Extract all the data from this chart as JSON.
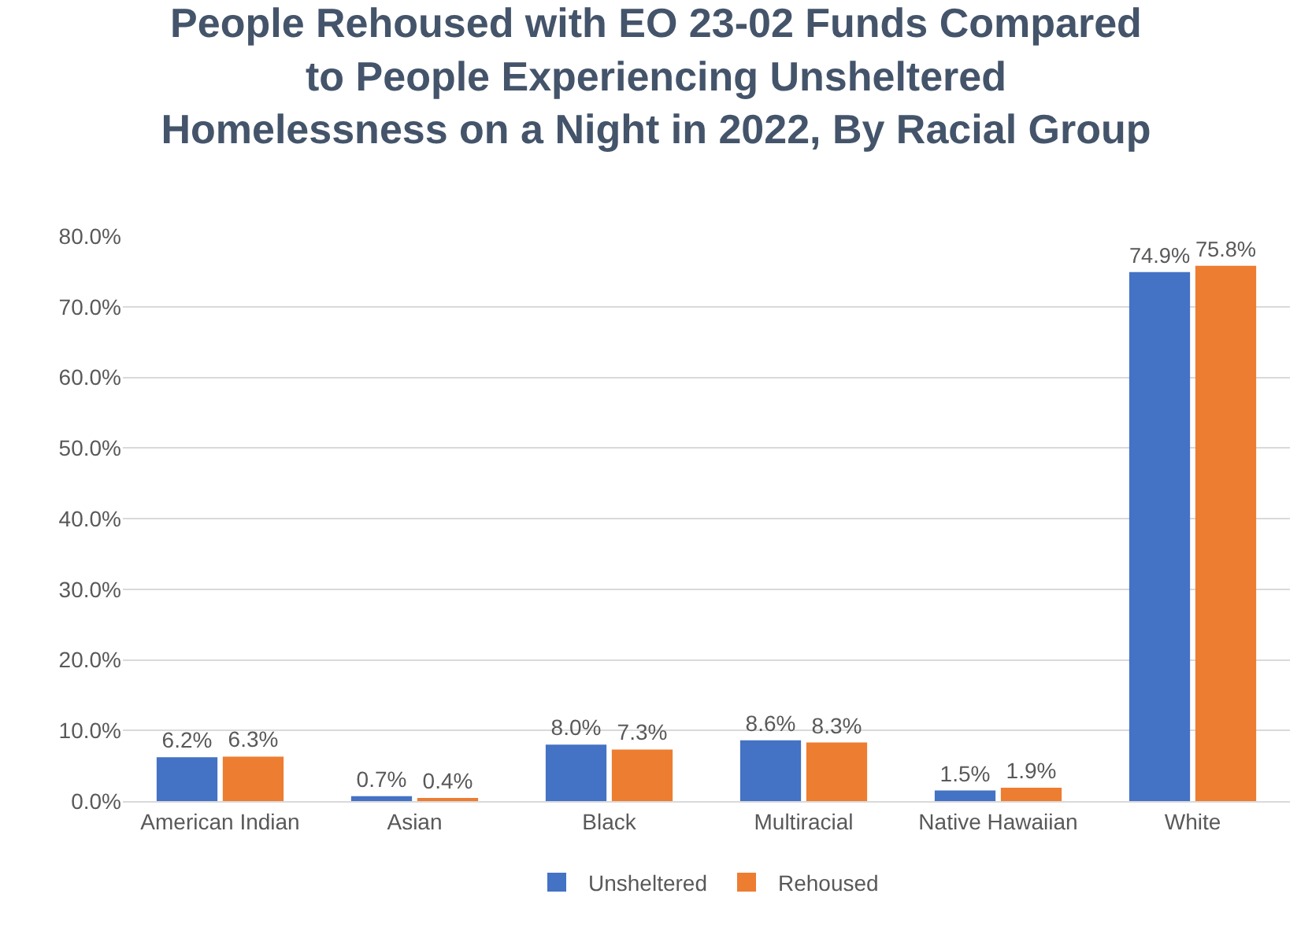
{
  "chart_data": {
    "type": "bar",
    "title": "People Rehoused with EO 23-02 Funds Compared\nto People Experiencing Unsheltered\nHomelessness on a Night in 2022, By Racial Group",
    "categories": [
      "American Indian",
      "Asian",
      "Black",
      "Multiracial",
      "Native Hawaiian",
      "White"
    ],
    "series": [
      {
        "name": "Unsheltered",
        "color": "#4472c4",
        "values": [
          6.2,
          0.7,
          8.0,
          8.6,
          1.5,
          74.9
        ],
        "value_labels": [
          "6.2%",
          "0.7%",
          "8.0%",
          "8.6%",
          "1.5%",
          "74.9%"
        ]
      },
      {
        "name": "Rehoused",
        "color": "#ed7d31",
        "values": [
          6.3,
          0.4,
          7.3,
          8.3,
          1.9,
          75.8
        ],
        "value_labels": [
          "6.3%",
          "0.4%",
          "7.3%",
          "8.3%",
          "1.9%",
          "75.8%"
        ]
      }
    ],
    "ylim": [
      0,
      80
    ],
    "yticks": [
      {
        "value": 0,
        "label": "0.0%"
      },
      {
        "value": 10,
        "label": "10.0%"
      },
      {
        "value": 20,
        "label": "20.0%"
      },
      {
        "value": 30,
        "label": "30.0%"
      },
      {
        "value": 40,
        "label": "40.0%"
      },
      {
        "value": 50,
        "label": "50.0%"
      },
      {
        "value": 60,
        "label": "60.0%"
      },
      {
        "value": 70,
        "label": "70.0%"
      },
      {
        "value": 80,
        "label": "80.0%"
      }
    ],
    "grid": "y",
    "legend": "bottom"
  }
}
